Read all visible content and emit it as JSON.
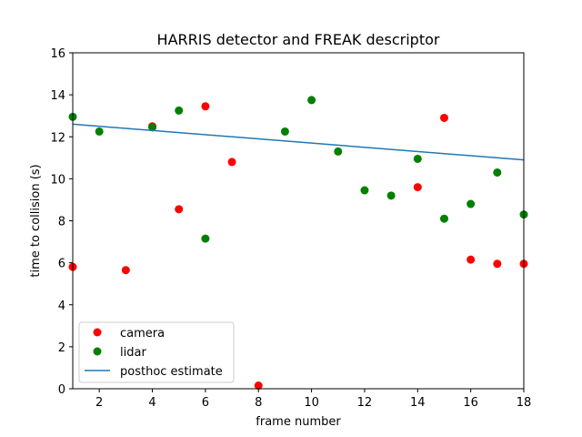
{
  "chart_data": {
    "type": "scatter",
    "title": "HARRIS detector and FREAK descriptor",
    "xlabel": "frame number",
    "ylabel": "time to collision (s)",
    "xlim": [
      1,
      18
    ],
    "ylim": [
      0,
      16
    ],
    "x_ticks": [
      2,
      4,
      6,
      8,
      10,
      12,
      14,
      16,
      18
    ],
    "y_ticks": [
      0,
      2,
      4,
      6,
      8,
      10,
      12,
      14,
      16
    ],
    "grid": false,
    "legend_position": "lower-left",
    "series": [
      {
        "name": "camera",
        "kind": "points",
        "color": "#ff0000",
        "points": [
          {
            "x": 1,
            "y": 5.8
          },
          {
            "x": 3,
            "y": 5.65
          },
          {
            "x": 4,
            "y": 12.5
          },
          {
            "x": 5,
            "y": 8.55
          },
          {
            "x": 6,
            "y": 13.45
          },
          {
            "x": 7,
            "y": 10.8
          },
          {
            "x": 8,
            "y": 0.15
          },
          {
            "x": 14,
            "y": 9.6
          },
          {
            "x": 15,
            "y": 12.9
          },
          {
            "x": 16,
            "y": 6.15
          },
          {
            "x": 17,
            "y": 5.95
          },
          {
            "x": 18,
            "y": 5.95
          }
        ]
      },
      {
        "name": "lidar",
        "kind": "points",
        "color": "#008000",
        "points": [
          {
            "x": 1,
            "y": 12.95
          },
          {
            "x": 2,
            "y": 12.25
          },
          {
            "x": 4,
            "y": 12.45
          },
          {
            "x": 5,
            "y": 13.25
          },
          {
            "x": 6,
            "y": 7.15
          },
          {
            "x": 9,
            "y": 12.25
          },
          {
            "x": 10,
            "y": 13.75
          },
          {
            "x": 11,
            "y": 11.3
          },
          {
            "x": 12,
            "y": 9.45
          },
          {
            "x": 13,
            "y": 9.2
          },
          {
            "x": 14,
            "y": 10.95
          },
          {
            "x": 15,
            "y": 8.1
          },
          {
            "x": 16,
            "y": 8.8
          },
          {
            "x": 17,
            "y": 10.3
          },
          {
            "x": 18,
            "y": 8.3
          }
        ]
      },
      {
        "name": "posthoc estimate",
        "kind": "line",
        "color": "#1f77b4",
        "points": [
          {
            "x": 1,
            "y": 12.6
          },
          {
            "x": 18,
            "y": 10.9
          }
        ]
      }
    ]
  }
}
